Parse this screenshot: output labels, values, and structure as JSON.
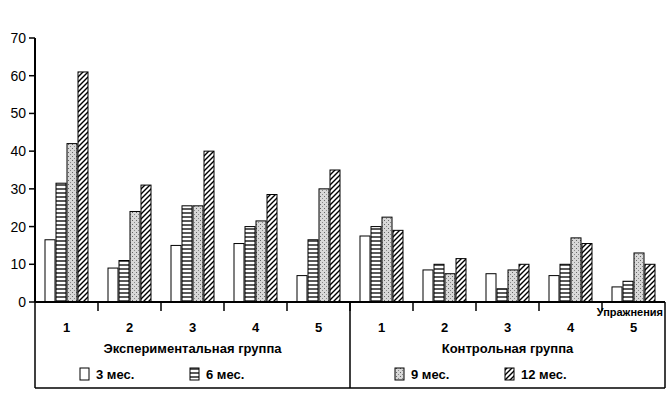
{
  "chart_data": {
    "type": "bar",
    "x_label": "Упражнения",
    "group_labels": [
      "Экспериментальная группа",
      "Контрольная группа"
    ],
    "categories": [
      "1",
      "2",
      "3",
      "4",
      "5",
      "1",
      "2",
      "3",
      "4",
      "5"
    ],
    "series": [
      {
        "name": "3 мес.",
        "color": "#ffffff",
        "values": [
          16.5,
          9,
          15,
          15.5,
          7,
          17.5,
          8.5,
          7.5,
          7,
          4
        ]
      },
      {
        "name": "6 мес.",
        "color": "#ffffff",
        "values": [
          31.5,
          11,
          25.5,
          20,
          16.5,
          20,
          10,
          3.5,
          10,
          5.5
        ]
      },
      {
        "name": "9 мес.",
        "color": "#d8d8d8",
        "values": [
          42,
          24,
          25.5,
          21.5,
          30,
          22.5,
          7.5,
          8.5,
          17,
          13
        ]
      },
      {
        "name": "12 мес.",
        "color": "#ffffff",
        "values": [
          61,
          31,
          40,
          28.5,
          35,
          19,
          11.5,
          10,
          15.5,
          10
        ]
      }
    ],
    "ylim": [
      0,
      70
    ],
    "yticks": [
      0,
      10,
      20,
      30,
      40,
      50,
      60,
      70
    ],
    "grid": false,
    "legend": "bottom"
  }
}
